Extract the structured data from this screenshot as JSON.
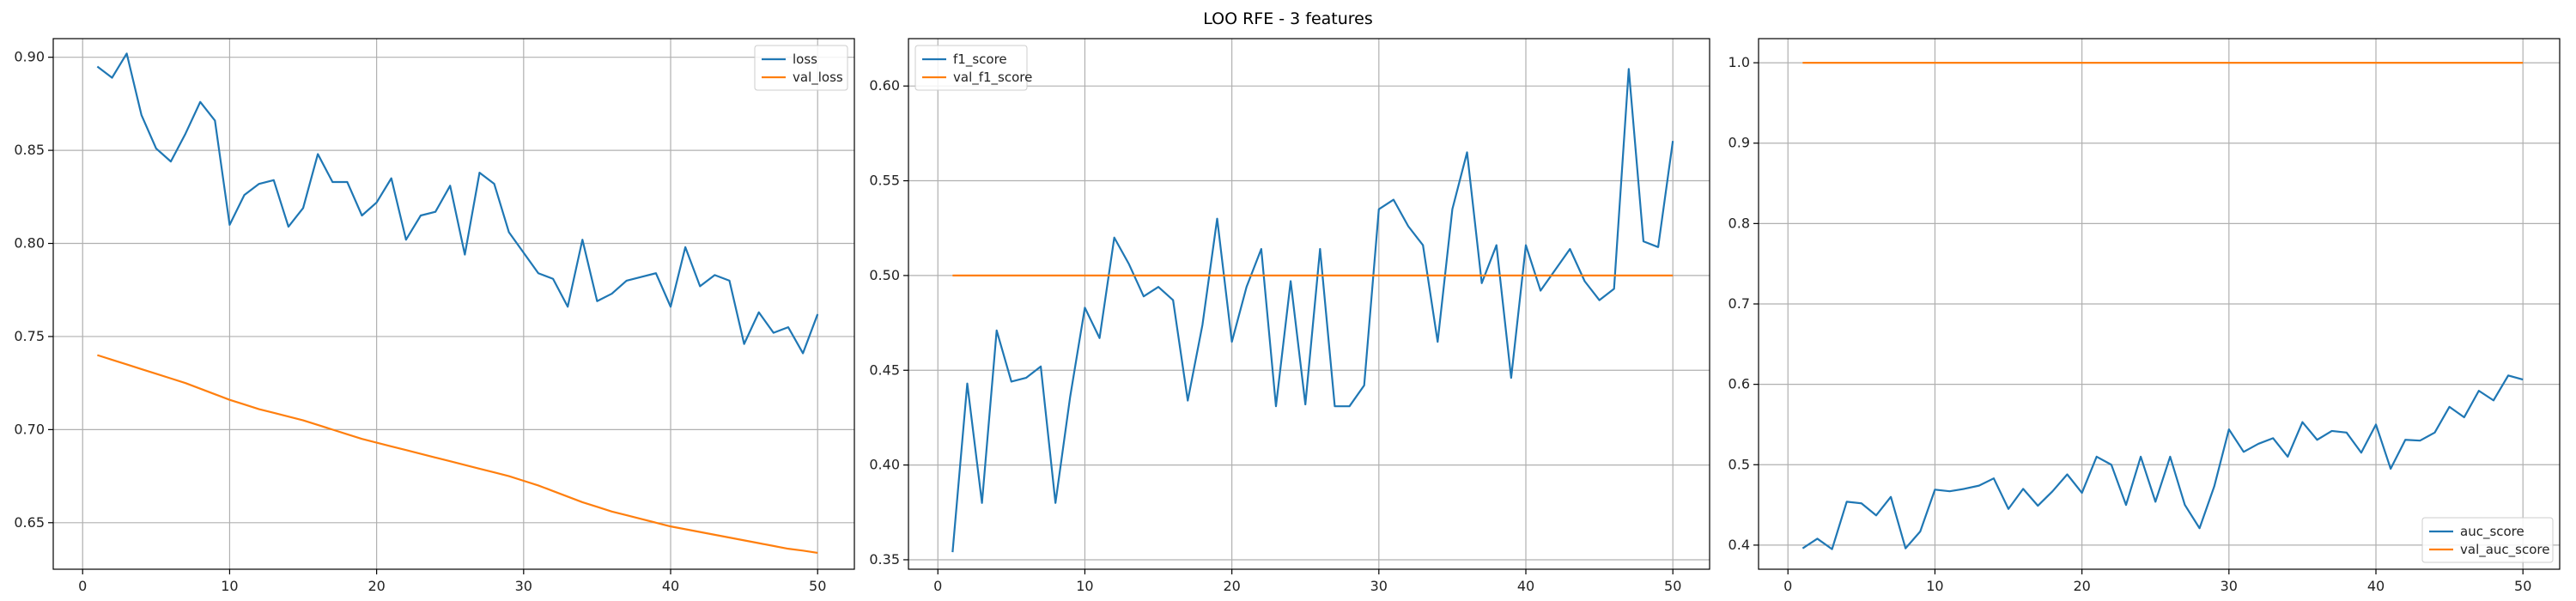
{
  "figure": {
    "title": "LOO RFE - 3 features",
    "colors": {
      "series1": "#1f77b4",
      "series2": "#ff7f0e",
      "grid": "#b0b0b0",
      "axis": "#000000"
    }
  },
  "chart_data": [
    {
      "type": "line",
      "xlim": [
        -2,
        52.5
      ],
      "ylim": [
        0.625,
        0.91
      ],
      "xticks": [
        0,
        10,
        20,
        30,
        40,
        50
      ],
      "yticks": [
        0.65,
        0.7,
        0.75,
        0.8,
        0.85,
        0.9
      ],
      "ytick_labels": [
        "0.65",
        "0.70",
        "0.75",
        "0.80",
        "0.85",
        "0.90"
      ],
      "grid": true,
      "legend": "top-right",
      "x": [
        1,
        2,
        3,
        4,
        5,
        6,
        7,
        8,
        9,
        10,
        11,
        12,
        13,
        14,
        15,
        16,
        17,
        18,
        19,
        20,
        21,
        22,
        23,
        24,
        25,
        26,
        27,
        28,
        29,
        30,
        31,
        32,
        33,
        34,
        35,
        36,
        37,
        38,
        39,
        40,
        41,
        42,
        43,
        44,
        45,
        46,
        47,
        48,
        49,
        50
      ],
      "series": [
        {
          "name": "loss",
          "color": "#1f77b4",
          "values": [
            0.895,
            0.889,
            0.902,
            0.869,
            0.851,
            0.844,
            0.859,
            0.876,
            0.866,
            0.81,
            0.826,
            0.832,
            0.834,
            0.809,
            0.819,
            0.848,
            0.833,
            0.833,
            0.815,
            0.822,
            0.835,
            0.802,
            0.815,
            0.817,
            0.831,
            0.794,
            0.838,
            0.832,
            0.806,
            0.795,
            0.784,
            0.781,
            0.766,
            0.802,
            0.769,
            0.773,
            0.78,
            0.782,
            0.784,
            0.766,
            0.798,
            0.777,
            0.783,
            0.78,
            0.746,
            0.763,
            0.752,
            0.755,
            0.741,
            0.762
          ]
        },
        {
          "name": "val_loss",
          "color": "#ff7f0e",
          "values": [
            0.74,
            0.7375,
            0.735,
            0.7325,
            0.73,
            0.7275,
            0.725,
            0.722,
            0.719,
            0.716,
            0.7135,
            0.711,
            0.709,
            0.707,
            0.705,
            0.7025,
            0.7,
            0.6975,
            0.695,
            0.693,
            0.691,
            0.689,
            0.687,
            0.685,
            0.683,
            0.681,
            0.679,
            0.677,
            0.675,
            0.6725,
            0.67,
            0.667,
            0.664,
            0.661,
            0.6585,
            0.656,
            0.654,
            0.652,
            0.65,
            0.648,
            0.6465,
            0.645,
            0.6435,
            0.642,
            0.6405,
            0.639,
            0.6375,
            0.636,
            0.635,
            0.6338
          ]
        }
      ]
    },
    {
      "type": "line",
      "xlim": [
        -2,
        52.5
      ],
      "ylim": [
        0.345,
        0.625
      ],
      "xticks": [
        0,
        10,
        20,
        30,
        40,
        50
      ],
      "yticks": [
        0.35,
        0.4,
        0.45,
        0.5,
        0.55,
        0.6
      ],
      "ytick_labels": [
        "0.35",
        "0.40",
        "0.45",
        "0.50",
        "0.55",
        "0.60"
      ],
      "grid": true,
      "legend": "top-left",
      "x": [
        1,
        2,
        3,
        4,
        5,
        6,
        7,
        8,
        9,
        10,
        11,
        12,
        13,
        14,
        15,
        16,
        17,
        18,
        19,
        20,
        21,
        22,
        23,
        24,
        25,
        26,
        27,
        28,
        29,
        30,
        31,
        32,
        33,
        34,
        35,
        36,
        37,
        38,
        39,
        40,
        41,
        42,
        43,
        44,
        45,
        46,
        47,
        48,
        49,
        50
      ],
      "series": [
        {
          "name": "f1_score",
          "color": "#1f77b4",
          "values": [
            0.354,
            0.443,
            0.38,
            0.471,
            0.444,
            0.446,
            0.452,
            0.38,
            0.436,
            0.483,
            0.467,
            0.52,
            0.506,
            0.489,
            0.494,
            0.487,
            0.434,
            0.474,
            0.53,
            0.465,
            0.494,
            0.514,
            0.431,
            0.497,
            0.432,
            0.514,
            0.431,
            0.431,
            0.442,
            0.535,
            0.54,
            0.526,
            0.516,
            0.465,
            0.535,
            0.565,
            0.496,
            0.516,
            0.446,
            0.516,
            0.492,
            0.503,
            0.514,
            0.497,
            0.487,
            0.493,
            0.609,
            0.518,
            0.515,
            0.571
          ]
        },
        {
          "name": "val_f1_score",
          "color": "#ff7f0e",
          "values": [
            0.5,
            0.5,
            0.5,
            0.5,
            0.5,
            0.5,
            0.5,
            0.5,
            0.5,
            0.5,
            0.5,
            0.5,
            0.5,
            0.5,
            0.5,
            0.5,
            0.5,
            0.5,
            0.5,
            0.5,
            0.5,
            0.5,
            0.5,
            0.5,
            0.5,
            0.5,
            0.5,
            0.5,
            0.5,
            0.5,
            0.5,
            0.5,
            0.5,
            0.5,
            0.5,
            0.5,
            0.5,
            0.5,
            0.5,
            0.5,
            0.5,
            0.5,
            0.5,
            0.5,
            0.5,
            0.5,
            0.5,
            0.5,
            0.5,
            0.5
          ]
        }
      ]
    },
    {
      "type": "line",
      "xlim": [
        -2,
        52.5
      ],
      "ylim": [
        0.37,
        1.03
      ],
      "xticks": [
        0,
        10,
        20,
        30,
        40,
        50
      ],
      "yticks": [
        0.4,
        0.5,
        0.6,
        0.7,
        0.8,
        0.9,
        1.0
      ],
      "ytick_labels": [
        "0.4",
        "0.5",
        "0.6",
        "0.7",
        "0.8",
        "0.9",
        "1.0"
      ],
      "grid": true,
      "legend": "bottom-right",
      "x": [
        1,
        2,
        3,
        4,
        5,
        6,
        7,
        8,
        9,
        10,
        11,
        12,
        13,
        14,
        15,
        16,
        17,
        18,
        19,
        20,
        21,
        22,
        23,
        24,
        25,
        26,
        27,
        28,
        29,
        30,
        31,
        32,
        33,
        34,
        35,
        36,
        37,
        38,
        39,
        40,
        41,
        42,
        43,
        44,
        45,
        46,
        47,
        48,
        49,
        50
      ],
      "series": [
        {
          "name": "auc_score",
          "color": "#1f77b4",
          "values": [
            0.396,
            0.408,
            0.395,
            0.454,
            0.452,
            0.437,
            0.46,
            0.396,
            0.417,
            0.469,
            0.467,
            0.47,
            0.474,
            0.483,
            0.445,
            0.47,
            0.449,
            0.467,
            0.488,
            0.465,
            0.51,
            0.5,
            0.45,
            0.51,
            0.454,
            0.51,
            0.45,
            0.421,
            0.473,
            0.544,
            0.516,
            0.526,
            0.533,
            0.51,
            0.553,
            0.531,
            0.542,
            0.54,
            0.515,
            0.55,
            0.495,
            0.531,
            0.53,
            0.54,
            0.572,
            0.559,
            0.592,
            0.58,
            0.611,
            0.606
          ]
        },
        {
          "name": "val_auc_score",
          "color": "#ff7f0e",
          "values": [
            1,
            1,
            1,
            1,
            1,
            1,
            1,
            1,
            1,
            1,
            1,
            1,
            1,
            1,
            1,
            1,
            1,
            1,
            1,
            1,
            1,
            1,
            1,
            1,
            1,
            1,
            1,
            1,
            1,
            1,
            1,
            1,
            1,
            1,
            1,
            1,
            1,
            1,
            1,
            1,
            1,
            1,
            1,
            1,
            1,
            1,
            1,
            1,
            1,
            1
          ]
        }
      ]
    }
  ]
}
